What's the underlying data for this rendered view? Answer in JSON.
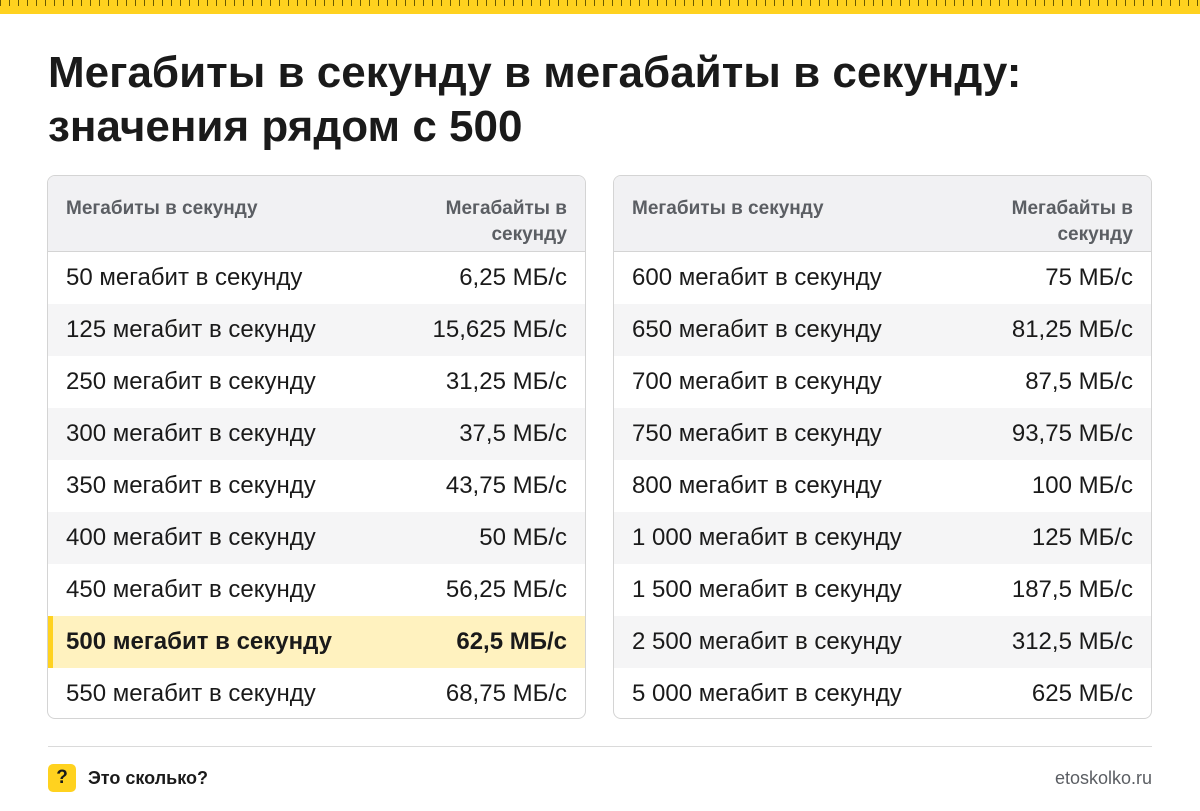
{
  "title_line1": "Мегабиты в секунду в мегабайты в секунду:",
  "title_line2": "значения рядом с 500",
  "table_left": {
    "header_col1": "Мегабиты в секунду",
    "header_col2": "Мегабайты в секунду",
    "rows": [
      {
        "mbit": "50 мегабит в секунду",
        "mbyte": "6,25 МБ/с"
      },
      {
        "mbit": "125 мегабит в секунду",
        "mbyte": "15,625 МБ/с"
      },
      {
        "mbit": "250 мегабит в секунду",
        "mbyte": "31,25 МБ/с"
      },
      {
        "mbit": "300 мегабит в секунду",
        "mbyte": "37,5 МБ/с"
      },
      {
        "mbit": "350 мегабит в секунду",
        "mbyte": "43,75 МБ/с"
      },
      {
        "mbit": "400 мегабит в секунду",
        "mbyte": "50 МБ/с"
      },
      {
        "mbit": "450 мегабит в секунду",
        "mbyte": "56,25 МБ/с"
      },
      {
        "mbit": "500 мегабит в секунду",
        "mbyte": "62,5 МБ/с",
        "highlighted": true
      },
      {
        "mbit": "550 мегабит в секунду",
        "mbyte": "68,75 МБ/с"
      }
    ]
  },
  "table_right": {
    "header_col1": "Мегабиты в секунду",
    "header_col2": "Мегабайты в секунду",
    "rows": [
      {
        "mbit": "600 мегабит в секунду",
        "mbyte": "75 МБ/с"
      },
      {
        "mbit": "650 мегабит в секунду",
        "mbyte": "81,25 МБ/с"
      },
      {
        "mbit": "700 мегабит в секунду",
        "mbyte": "87,5 МБ/с"
      },
      {
        "mbit": "750 мегабит в секунду",
        "mbyte": "93,75 МБ/с"
      },
      {
        "mbit": "800 мегабит в секунду",
        "mbyte": "100 МБ/с"
      },
      {
        "mbit": "1 000 мегабит в секунду",
        "mbyte": "125 МБ/с"
      },
      {
        "mbit": "1 500 мегабит в секунду",
        "mbyte": "187,5 МБ/с"
      },
      {
        "mbit": "2 500 мегабит в секунду",
        "mbyte": "312,5 МБ/с"
      },
      {
        "mbit": "5 000 мегабит в секунду",
        "mbyte": "625 МБ/с"
      }
    ]
  },
  "footer": {
    "icon": "question-mark-icon",
    "icon_glyph": "?",
    "brand": "Это сколько?",
    "site": "etoskolko.ru"
  },
  "colors": {
    "accent": "#ffd21f",
    "highlight_row": "#fff2bf",
    "header_bg": "#f1f1f3",
    "text": "#1a1a1a",
    "muted": "#5b5e63"
  }
}
